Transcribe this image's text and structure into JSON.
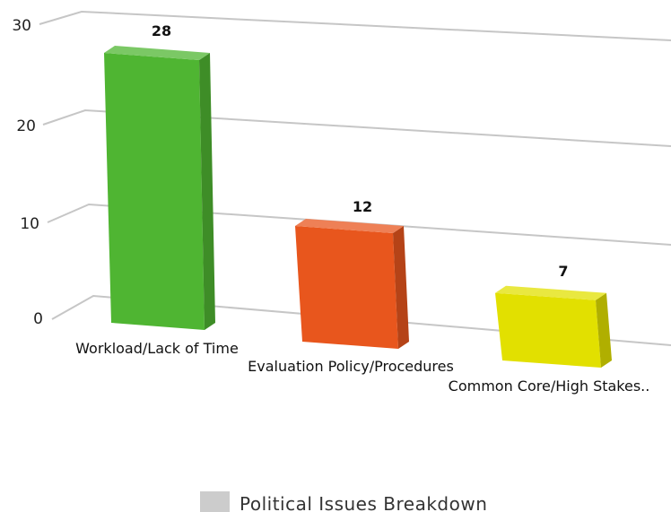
{
  "chart_data": {
    "type": "bar",
    "categories": [
      "Workload/Lack of Time",
      "Evaluation Policy/Procedures",
      "Common Core/High Stakes.."
    ],
    "series": [
      {
        "name": "Political Issues Breakdown",
        "values": [
          28,
          12,
          7
        ]
      }
    ],
    "value_labels": [
      "28",
      "12",
      "7"
    ],
    "yticks": [
      "0",
      "10",
      "20",
      "30"
    ],
    "ylim": [
      0,
      30
    ],
    "bar_colors": [
      "#4fb532",
      "#e8561d",
      "#e2e000"
    ],
    "legend_color": "#cccccc",
    "grid": true,
    "three_d": true,
    "legend_position": "bottom-center"
  }
}
